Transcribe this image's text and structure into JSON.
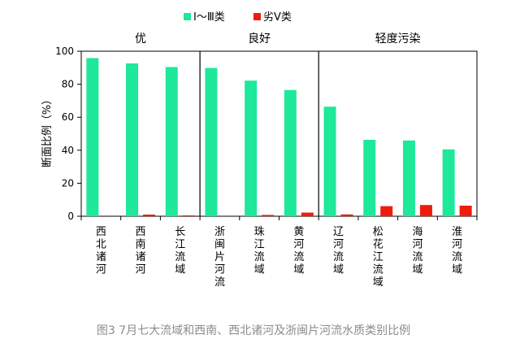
{
  "chart_data": {
    "type": "bar",
    "ylabel": "断面比例（%）",
    "ylim": [
      0,
      100
    ],
    "yticks": [
      0,
      20,
      40,
      60,
      80,
      100
    ],
    "grid": false,
    "legend_position": "top",
    "groups": [
      {
        "label": "优",
        "count": 3
      },
      {
        "label": "良好",
        "count": 3
      },
      {
        "label": "轻度污染",
        "count": 4
      }
    ],
    "categories": [
      "西北诸河",
      "西南诸河",
      "长江流域",
      "浙闽片河流",
      "珠江流域",
      "黄河流域",
      "辽河流域",
      "松花江流域",
      "海河流域",
      "淮河流域"
    ],
    "series": [
      {
        "name": "Ⅰ～Ⅲ类",
        "color": "#1ee89a",
        "values": [
          95.8,
          92.6,
          90.4,
          89.8,
          82.2,
          76.5,
          66.4,
          46.3,
          45.9,
          40.5
        ]
      },
      {
        "name": "劣Ⅴ类",
        "color": "#ee1c0c",
        "values": [
          0,
          1.0,
          0.5,
          0,
          0.8,
          2.2,
          1.1,
          6.1,
          6.8,
          6.4
        ]
      }
    ]
  },
  "caption": "图3 7月七大流域和西南、西北诸河及浙闽片河流水质类别比例"
}
